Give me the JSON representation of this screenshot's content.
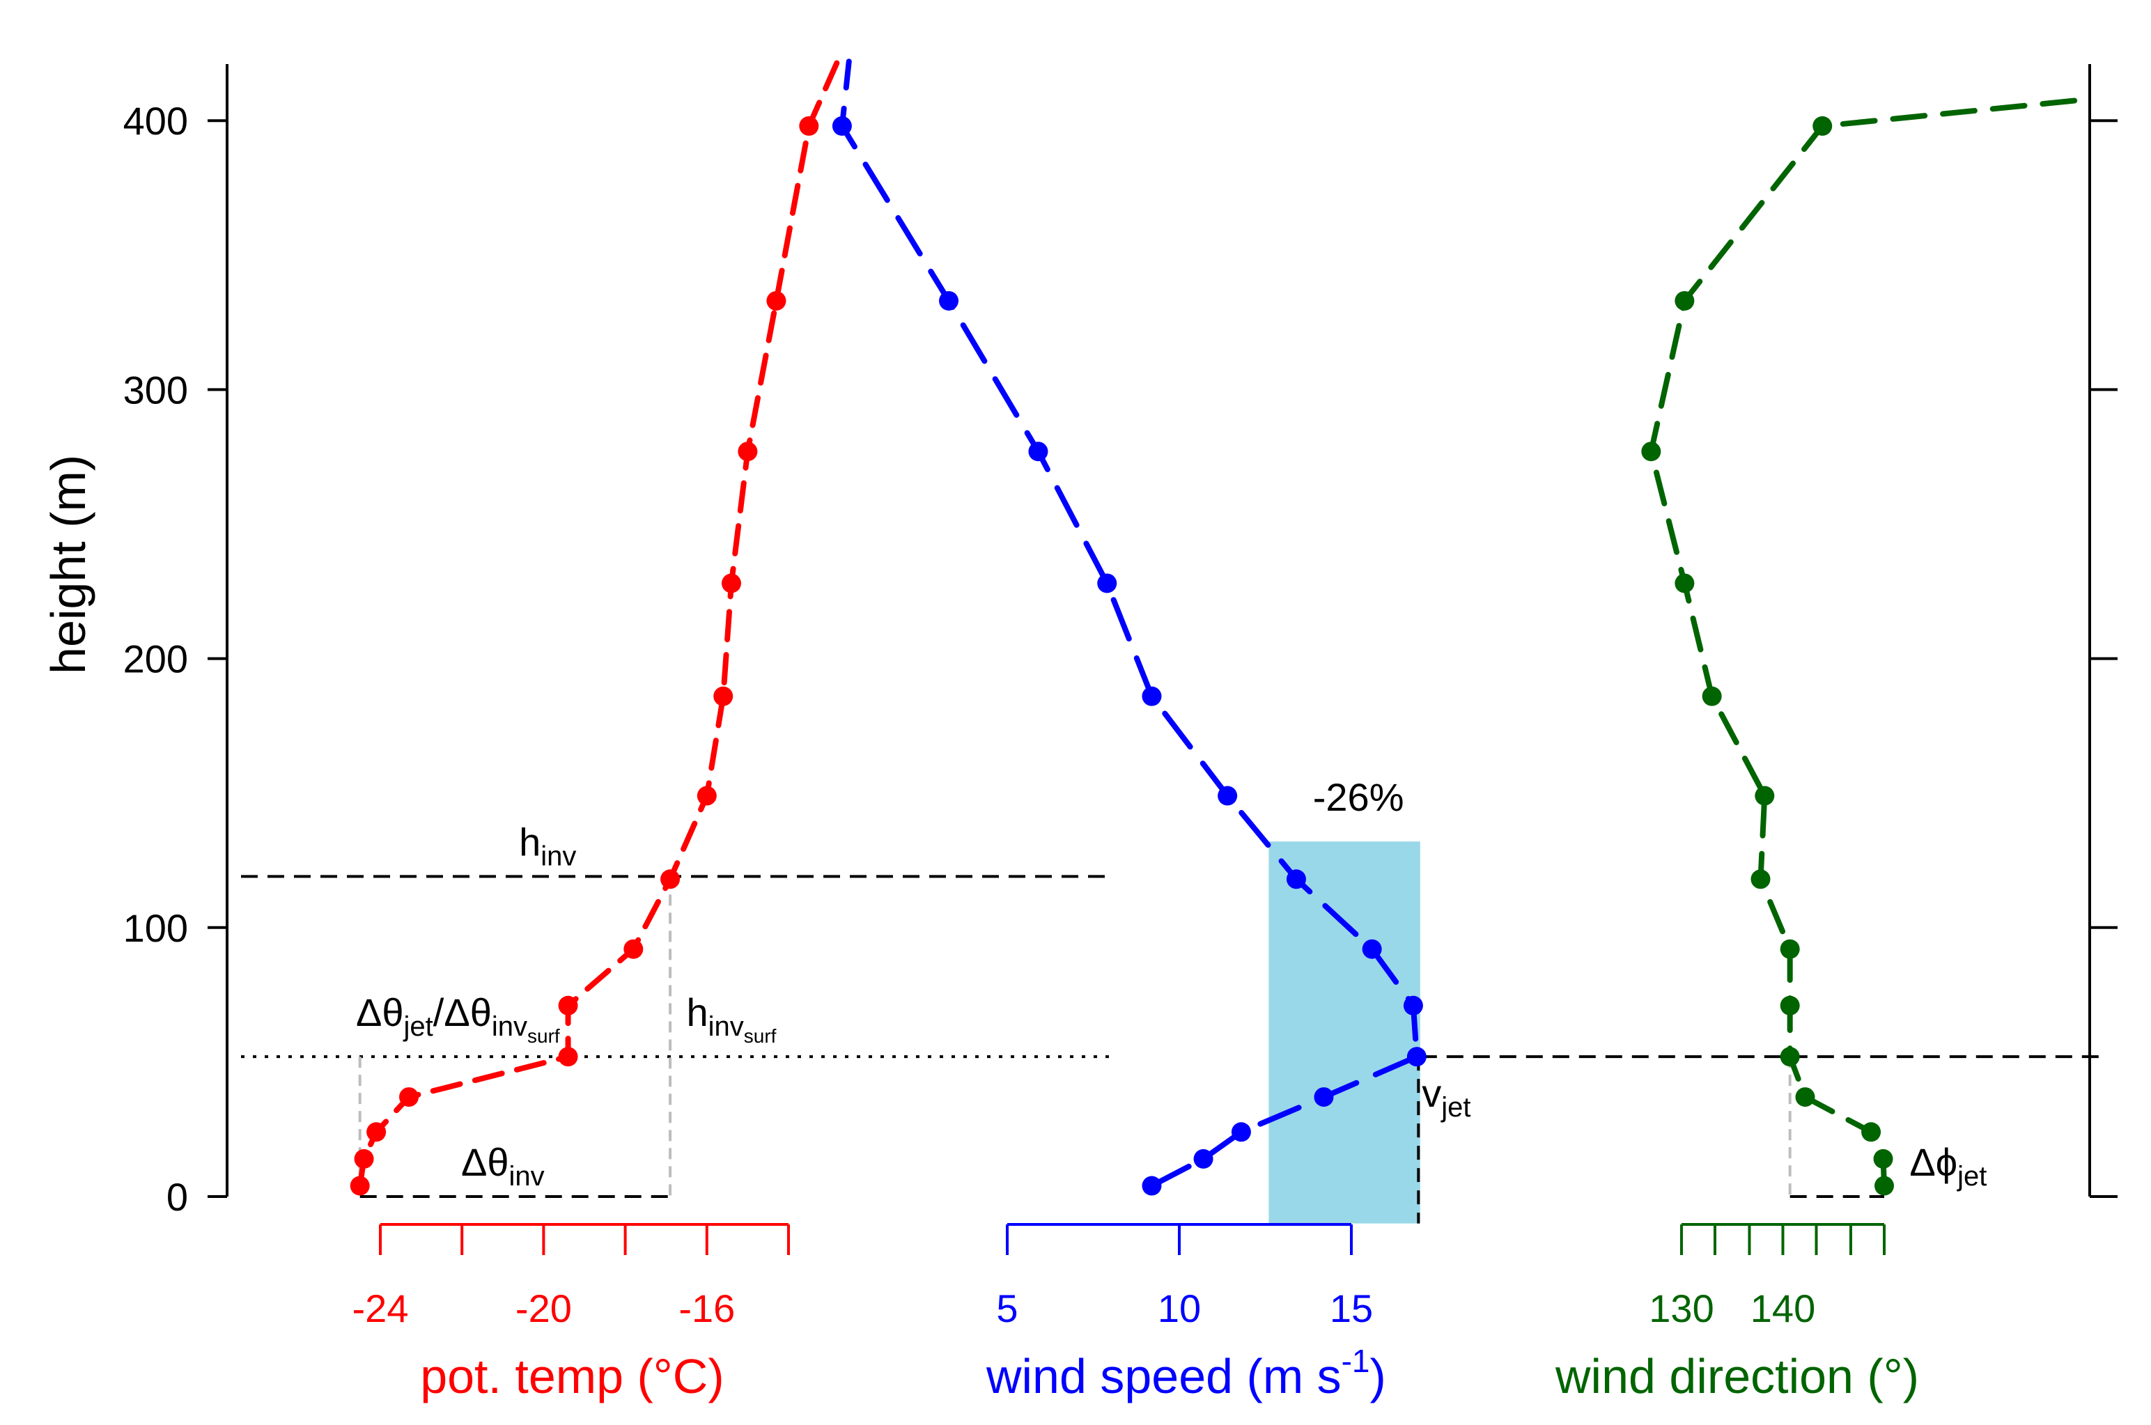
{
  "chart_data": {
    "type": "line",
    "y_axis": {
      "label": "height (m)",
      "ticks": [
        0,
        100,
        200,
        300,
        400
      ],
      "ylim": [
        0,
        420
      ]
    },
    "panels": [
      {
        "name": "potential_temperature",
        "xlabel": "pot. temp (°C)",
        "color": "#ff0000",
        "ticks": [
          -24,
          -20,
          -16
        ],
        "minor_ticks": [
          -24,
          -22,
          -20,
          -18,
          -16,
          -14
        ],
        "points": [
          {
            "x": -24.5,
            "y": 4
          },
          {
            "x": -24.4,
            "y": 14
          },
          {
            "x": -24.1,
            "y": 24
          },
          {
            "x": -23.3,
            "y": 37
          },
          {
            "x": -19.4,
            "y": 52
          },
          {
            "x": -19.4,
            "y": 71
          },
          {
            "x": -17.8,
            "y": 92
          },
          {
            "x": -16.9,
            "y": 118
          },
          {
            "x": -16.0,
            "y": 149
          },
          {
            "x": -15.6,
            "y": 186
          },
          {
            "x": -15.4,
            "y": 228
          },
          {
            "x": -15.0,
            "y": 277
          },
          {
            "x": -14.3,
            "y": 333
          },
          {
            "x": -13.5,
            "y": 398
          },
          {
            "x": -12.8,
            "y": 422
          }
        ]
      },
      {
        "name": "wind_speed",
        "xlabel": "wind speed (m s",
        "xlabel_sup": "-1",
        "xlabel_end": ")",
        "color": "#0000ff",
        "ticks": [
          5,
          10,
          15
        ],
        "points": [
          {
            "x": 9.2,
            "y": 4
          },
          {
            "x": 10.7,
            "y": 14
          },
          {
            "x": 11.8,
            "y": 24
          },
          {
            "x": 14.2,
            "y": 37
          },
          {
            "x": 16.9,
            "y": 52
          },
          {
            "x": 16.8,
            "y": 71
          },
          {
            "x": 15.6,
            "y": 92
          },
          {
            "x": 13.4,
            "y": 118
          },
          {
            "x": 11.4,
            "y": 149
          },
          {
            "x": 9.2,
            "y": 186
          },
          {
            "x": 7.9,
            "y": 228
          },
          {
            "x": 5.9,
            "y": 277
          },
          {
            "x": 3.3,
            "y": 333
          },
          {
            "x": 0.2,
            "y": 398
          },
          {
            "x": 0.4,
            "y": 422
          }
        ]
      },
      {
        "name": "wind_direction",
        "xlabel": "wind direction (°)",
        "color": "#006400",
        "ticks": [
          130,
          140
        ],
        "minor_ticks": [
          130,
          133.3,
          136.7,
          140,
          143.3,
          146.7,
          150
        ],
        "points": [
          {
            "x": 150.0,
            "y": 4
          },
          {
            "x": 149.9,
            "y": 14
          },
          {
            "x": 148.7,
            "y": 24
          },
          {
            "x": 142.2,
            "y": 37
          },
          {
            "x": 140.7,
            "y": 52
          },
          {
            "x": 140.7,
            "y": 71
          },
          {
            "x": 140.7,
            "y": 92
          },
          {
            "x": 137.8,
            "y": 118
          },
          {
            "x": 138.2,
            "y": 149
          },
          {
            "x": 133.0,
            "y": 186
          },
          {
            "x": 130.3,
            "y": 228
          },
          {
            "x": 127.0,
            "y": 277
          },
          {
            "x": 130.3,
            "y": 333
          },
          {
            "x": 143.9,
            "y": 398
          },
          {
            "x": 182.0,
            "y": 408
          }
        ]
      }
    ],
    "shaded_region": {
      "x_range": [
        12.6,
        17.0
      ],
      "y_range": [
        -10,
        132
      ],
      "label": "-26%",
      "color": "#99d8e8"
    },
    "reference_lines": [
      {
        "label": "h",
        "sub": "inv",
        "height": 119,
        "style": "dashed"
      },
      {
        "label": "Δθ",
        "sub": "jet",
        "label2": "/Δθ",
        "sub2": "inv",
        "subsub2": "surf",
        "height": 52,
        "style": "dotted"
      },
      {
        "label": "h",
        "sub": "inv",
        "subsub": "surf"
      },
      {
        "label": "Δθ",
        "sub": "inv"
      },
      {
        "label": "v",
        "sub": "jet"
      },
      {
        "label": "Δϕ",
        "sub": "jet"
      }
    ]
  }
}
